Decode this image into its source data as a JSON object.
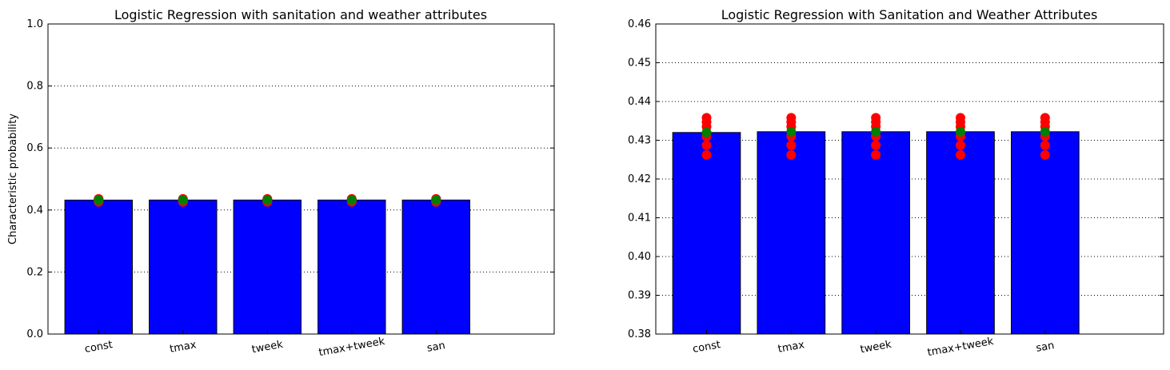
{
  "chart_data": [
    {
      "type": "bar",
      "title": "Logistic Regression with sanitation and weather attributes",
      "xlabel": "",
      "ylabel": "Characteristic probability",
      "ylim": [
        0.0,
        1.0
      ],
      "yticks": [
        "0.0",
        "0.2",
        "0.4",
        "0.6",
        "0.8",
        "1.0"
      ],
      "grid": true,
      "categories": [
        "const",
        "tmax",
        "tweek",
        "tmax+tweek",
        "san"
      ],
      "values": [
        0.432,
        0.4322,
        0.4322,
        0.4322,
        0.4322
      ],
      "bar_color": "#0000ff",
      "red_points": [
        0.4262,
        0.4287,
        0.431,
        0.4335,
        0.4347,
        0.4358
      ],
      "green_points": [
        0.432,
        0.4322,
        0.4322,
        0.4322,
        0.4322
      ],
      "red_color": "#ff0000",
      "green_color": "#008000"
    },
    {
      "type": "bar",
      "title": "Logistic Regression with Sanitation and Weather Attributes",
      "xlabel": "",
      "ylabel": "",
      "ylim": [
        0.38,
        0.46
      ],
      "yticks": [
        "0.38",
        "0.39",
        "0.40",
        "0.41",
        "0.42",
        "0.43",
        "0.44",
        "0.45",
        "0.46"
      ],
      "grid": true,
      "categories": [
        "const",
        "tmax",
        "tweek",
        "tmax+tweek",
        "san"
      ],
      "values": [
        0.432,
        0.4322,
        0.4322,
        0.4322,
        0.4322
      ],
      "bar_color": "#0000ff",
      "red_points": [
        0.4262,
        0.4287,
        0.431,
        0.4335,
        0.4347,
        0.4358
      ],
      "green_points": [
        0.432,
        0.4322,
        0.4322,
        0.4322,
        0.4322
      ],
      "red_color": "#ff0000",
      "green_color": "#008000"
    }
  ]
}
